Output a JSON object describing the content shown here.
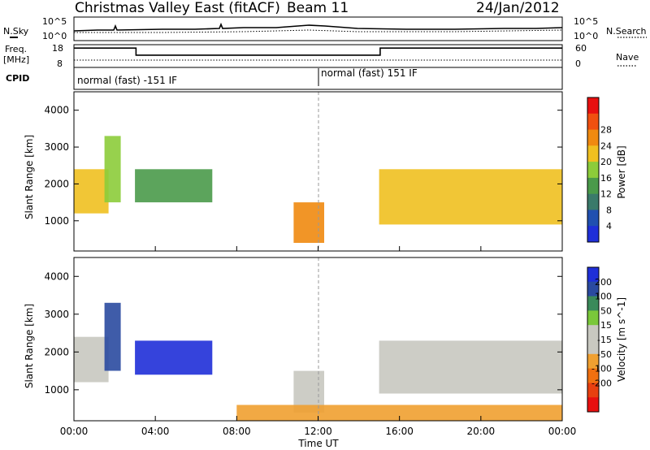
{
  "header": {
    "station": "Christmas Valley East (fitACF)",
    "beam": "Beam 11",
    "date": "24/Jan/2012"
  },
  "noise_panel": {
    "left_label": "N.Sky",
    "right_label": "N.Search",
    "left_ticks": [
      "10^5",
      "10^0"
    ],
    "right_ticks": [
      "10^5",
      "10^0"
    ]
  },
  "freq_panel": {
    "left_label_1": "Freq.",
    "left_label_2": "[MHz]",
    "right_label": "Nave",
    "left_ticks": [
      "18",
      "8"
    ],
    "right_ticks": [
      "60",
      "0"
    ]
  },
  "cpid_panel": {
    "label": "CPID",
    "segments": [
      "normal (fast) -151 IF",
      "normal (fast) 151 IF"
    ]
  },
  "x_axis": {
    "label": "Time UT",
    "ticks": [
      "00:00",
      "04:00",
      "08:00",
      "12:00",
      "16:00",
      "20:00",
      "00:00"
    ]
  },
  "colors": {
    "power_scale": [
      "#1f2fd8",
      "#2050b0",
      "#3a7a6a",
      "#4a9a4a",
      "#8ccc3a",
      "#f0c020",
      "#f08a10",
      "#f05010",
      "#e81010"
    ],
    "velocity_scale": [
      "#1f2fd8",
      "#2a4aa0",
      "#3a8a5a",
      "#7ac83a",
      "#c8c8c0",
      "#c8c8c0",
      "#f0a030",
      "#f07010",
      "#e84010",
      "#e81010"
    ]
  },
  "chart_data": [
    {
      "type": "heatmap",
      "panel": "power",
      "ylabel": "Slant Range [km]",
      "xlabel": "Time UT",
      "ylim": [
        180,
        4500
      ],
      "yticks": [
        1000,
        2000,
        3000,
        4000
      ],
      "x": [
        "00:00",
        "04:00",
        "08:00",
        "12:00",
        "16:00",
        "20:00",
        "00:00"
      ],
      "colorbar": {
        "label": "Power [dB]",
        "ticks": [
          4,
          8,
          12,
          16,
          20,
          24,
          28
        ]
      },
      "features": [
        {
          "time_start": 0.0,
          "time_end": 1.7,
          "range_start": 1200,
          "range_end": 2400,
          "value": 20
        },
        {
          "time_start": 1.5,
          "time_end": 2.3,
          "range_start": 1500,
          "range_end": 3300,
          "value": 16
        },
        {
          "time_start": 3.0,
          "time_end": 6.8,
          "range_start": 1500,
          "range_end": 2400,
          "value": 12
        },
        {
          "time_start": 10.8,
          "time_end": 12.3,
          "range_start": 400,
          "range_end": 1500,
          "value": 24
        },
        {
          "time_start": 15.0,
          "time_end": 24.0,
          "range_start": 900,
          "range_end": 2400,
          "value": 20
        }
      ]
    },
    {
      "type": "heatmap",
      "panel": "velocity",
      "ylabel": "Slant Range [km]",
      "xlabel": "Time UT",
      "ylim": [
        180,
        4500
      ],
      "yticks": [
        1000,
        2000,
        3000,
        4000
      ],
      "x": [
        "00:00",
        "04:00",
        "08:00",
        "12:00",
        "16:00",
        "20:00",
        "00:00"
      ],
      "colorbar": {
        "label": "Velocity [m s^-1]",
        "ticks": [
          200,
          100,
          50,
          15,
          -15,
          -50,
          -100,
          -200
        ]
      },
      "features": [
        {
          "time_start": 0.0,
          "time_end": 1.7,
          "range_start": 1200,
          "range_end": 2400,
          "value": 0
        },
        {
          "time_start": 1.5,
          "time_end": 2.3,
          "range_start": 1500,
          "range_end": 3300,
          "value": 150
        },
        {
          "time_start": 3.0,
          "time_end": 6.8,
          "range_start": 1400,
          "range_end": 2300,
          "value": 200
        },
        {
          "time_start": 10.8,
          "time_end": 12.3,
          "range_start": 400,
          "range_end": 1500,
          "value": 0
        },
        {
          "time_start": 15.0,
          "time_end": 24.0,
          "range_start": 900,
          "range_end": 2300,
          "value": 0
        },
        {
          "time_start": 8.0,
          "time_end": 24.0,
          "range_start": 180,
          "range_end": 600,
          "value": -80
        }
      ]
    },
    {
      "type": "line",
      "panel": "frequency",
      "ylabel": "Freq. [MHz]",
      "ylim": [
        8,
        18
      ],
      "x": [
        0,
        3.05,
        3.05,
        15.05,
        15.05,
        24
      ],
      "values": [
        16.5,
        16.5,
        13.4,
        13.4,
        16.5,
        16.5
      ]
    }
  ]
}
